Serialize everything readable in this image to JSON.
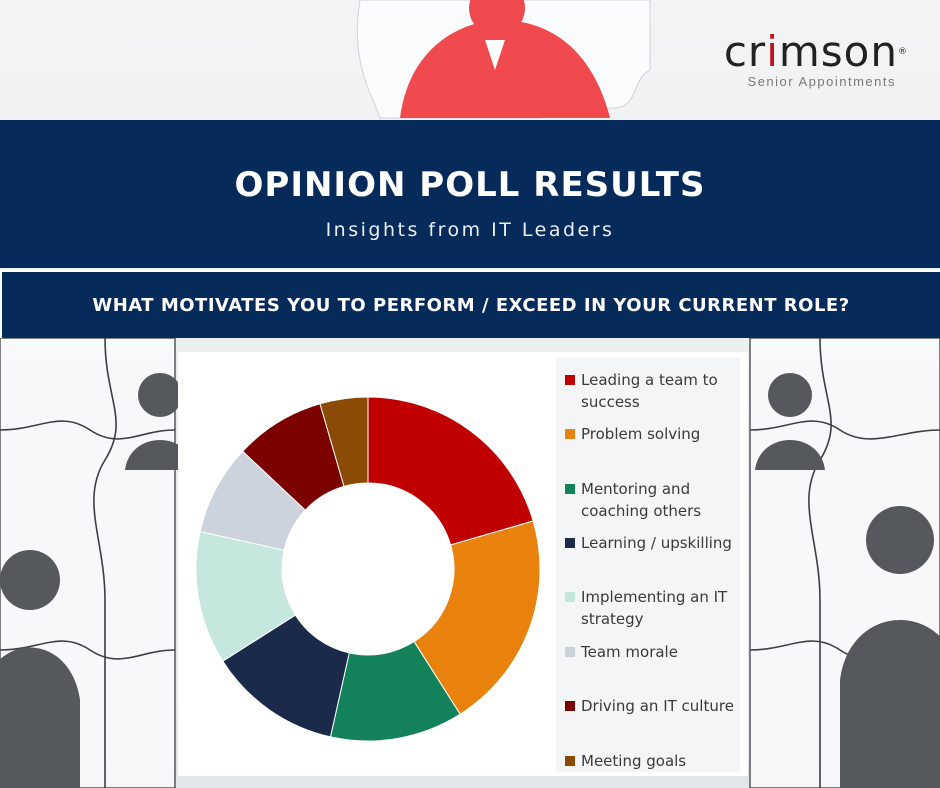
{
  "logo": {
    "pre": "cr",
    "accent": "i",
    "post": "mson",
    "mark": "®",
    "tagline": "Senior Appointments",
    "accent_color": "#c0111c"
  },
  "banner": {
    "title": "OPINION POLL RESULTS",
    "subtitle": "Insights from IT Leaders",
    "color": "#062a5a"
  },
  "question": {
    "text": "WHAT MOTIVATES YOU TO PERFORM / EXCEED IN YOUR CURRENT ROLE?"
  },
  "chart_data": {
    "type": "pie",
    "style": "donut",
    "title": "",
    "legend_position": "right",
    "categories": [
      "Leading a team to success",
      "Problem solving",
      "Mentoring and coaching others",
      "Learning / upskilling",
      "Implementing an IT strategy",
      "Team morale",
      "Driving an IT culture",
      "Meeting goals"
    ],
    "values": [
      20.5,
      20.5,
      12.5,
      12.5,
      12.5,
      8.5,
      8.5,
      4.5
    ],
    "colors": [
      "#c00000",
      "#e8820c",
      "#13815a",
      "#1b2a4a",
      "#c5e7de",
      "#cdd3dc",
      "#7b0000",
      "#8b4a06"
    ]
  }
}
